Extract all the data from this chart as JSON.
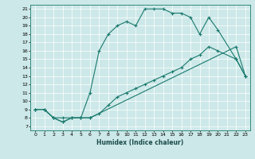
{
  "xlabel": "Humidex (Indice chaleur)",
  "background_color": "#cde8e8",
  "line_color": "#1a7a6e",
  "xlim": [
    -0.5,
    23.5
  ],
  "ylim": [
    6.5,
    21.5
  ],
  "xticks": [
    0,
    1,
    2,
    3,
    4,
    5,
    6,
    7,
    8,
    9,
    10,
    11,
    12,
    13,
    14,
    15,
    16,
    17,
    18,
    19,
    20,
    21,
    22,
    23
  ],
  "yticks": [
    7,
    8,
    9,
    10,
    11,
    12,
    13,
    14,
    15,
    16,
    17,
    18,
    19,
    20,
    21
  ],
  "curve1_x": [
    0,
    1,
    2,
    3,
    4,
    5,
    6,
    7,
    8,
    9,
    10,
    11,
    12,
    13,
    14,
    15,
    16,
    17,
    18,
    19,
    20,
    22,
    23
  ],
  "curve1_y": [
    9,
    9,
    8,
    7.5,
    8,
    8,
    11,
    16,
    18,
    19,
    19.5,
    19,
    21,
    21,
    21,
    20.5,
    20.5,
    20,
    18,
    20,
    18.5,
    15,
    13
  ],
  "curve2_x": [
    0,
    1,
    2,
    3,
    4,
    5,
    6,
    22,
    23
  ],
  "curve2_y": [
    9,
    9,
    8,
    8,
    8,
    8,
    8,
    16.5,
    13
  ],
  "curve3_x": [
    0,
    1,
    2,
    3,
    4,
    5,
    6,
    7,
    8,
    9,
    10,
    11,
    12,
    13,
    14,
    15,
    16,
    17,
    18,
    19,
    20,
    22,
    23
  ],
  "curve3_y": [
    9,
    9,
    8,
    7.5,
    8,
    8,
    8,
    8.5,
    9.5,
    10.5,
    11,
    11.5,
    12,
    12.5,
    13,
    13.5,
    14,
    15,
    15.5,
    16.5,
    16,
    15,
    13
  ]
}
